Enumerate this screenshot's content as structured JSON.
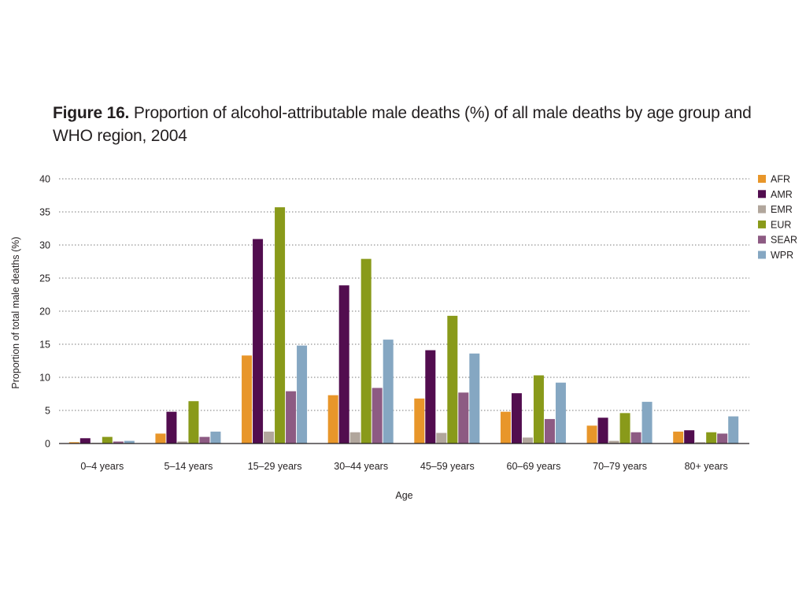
{
  "title": {
    "figure_label": "Figure 16.",
    "text": " Proportion of alcohol-attributable male deaths (%) of all male deaths by age group and WHO region, 2004"
  },
  "chart_data": {
    "type": "bar",
    "categories": [
      "0–4 years",
      "5–14 years",
      "15–29 years",
      "30–44 years",
      "45–59 years",
      "60–69 years",
      "70–79 years",
      "80+ years"
    ],
    "series": [
      {
        "name": "AFR",
        "color": "#e8962a",
        "values": [
          0.2,
          1.5,
          13.3,
          7.3,
          6.8,
          4.8,
          2.7,
          1.8
        ]
      },
      {
        "name": "AMR",
        "color": "#520d4f",
        "values": [
          0.8,
          4.8,
          30.9,
          23.9,
          14.1,
          7.6,
          3.9,
          2.0
        ]
      },
      {
        "name": "EMR",
        "color": "#b1a69c",
        "values": [
          0.1,
          0.3,
          1.8,
          1.7,
          1.6,
          0.9,
          0.4,
          0.2
        ]
      },
      {
        "name": "EUR",
        "color": "#899a1a",
        "values": [
          1.0,
          6.4,
          35.7,
          27.9,
          19.3,
          10.3,
          4.6,
          1.7
        ]
      },
      {
        "name": "SEAR",
        "color": "#8d5b83",
        "values": [
          0.3,
          1.0,
          7.9,
          8.4,
          7.7,
          3.7,
          1.7,
          1.5
        ]
      },
      {
        "name": "WPR",
        "color": "#85a7c2",
        "values": [
          0.4,
          1.8,
          14.8,
          15.7,
          13.6,
          9.2,
          6.3,
          4.1
        ]
      }
    ],
    "xlabel": "Age",
    "ylabel": "Proportion of total male deaths (%)",
    "ylim": [
      0,
      40
    ],
    "yticks": [
      0,
      5,
      10,
      15,
      20,
      25,
      30,
      35,
      40
    ],
    "grid": true,
    "legend": "right"
  }
}
